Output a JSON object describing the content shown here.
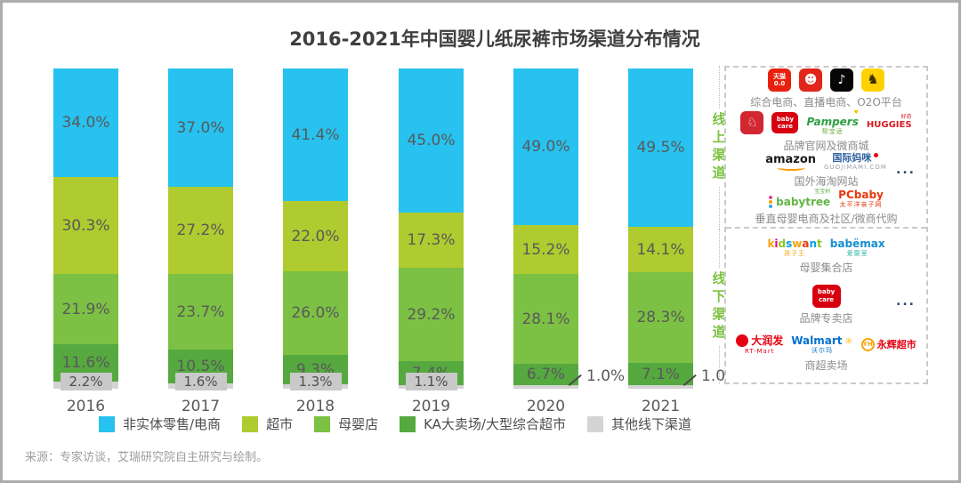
{
  "title": "2016-2021年中国婴儿纸尿裤市场渠道分布情况",
  "source": "来源：专家访谈，艾瑞研究院自主研究与绘制。",
  "chart_data": {
    "type": "bar",
    "stacked": true,
    "unit": "%",
    "title": "2016-2021年中国婴儿纸尿裤市场渠道分布情况",
    "categories": [
      "2016",
      "2017",
      "2018",
      "2019",
      "2020",
      "2021"
    ],
    "series": [
      {
        "name": "非实体零售/电商",
        "color": "#27C2EF",
        "values": [
          34.0,
          37.0,
          41.4,
          45.0,
          49.0,
          49.5
        ]
      },
      {
        "name": "超市",
        "color": "#AFCB2F",
        "values": [
          30.3,
          27.2,
          22.0,
          17.3,
          15.2,
          14.1
        ]
      },
      {
        "name": "母婴店",
        "color": "#7CC143",
        "values": [
          21.9,
          23.7,
          26.0,
          29.2,
          28.1,
          28.3
        ]
      },
      {
        "name": "KA大卖场/大型综合超市",
        "color": "#55A93F",
        "values": [
          11.6,
          10.5,
          9.3,
          7.4,
          6.7,
          7.1
        ]
      },
      {
        "name": "其他线下渠道",
        "color": "#D4D4D4",
        "values": [
          2.2,
          1.6,
          1.3,
          1.1,
          1.0,
          1.0
        ]
      }
    ],
    "ylim": [
      0,
      100
    ],
    "grid": false,
    "legend_position": "bottom"
  },
  "right_panel": {
    "online_label": "线上渠道",
    "offline_label": "线下渠道",
    "online_groups": [
      {
        "caption": "综合电商、直播电商、O2O平台",
        "logos": [
          {
            "k": "tile",
            "name": "tmall-icon",
            "bg": "#E8210F",
            "fg": "#FFFFFF",
            "lines": [
              "天猫",
              "0.0"
            ],
            "fs": 7
          },
          {
            "k": "tile",
            "name": "jd-icon",
            "bg": "#E1251B",
            "fg": "#FFFFFF",
            "lines": [
              "☻"
            ],
            "fs": 14
          },
          {
            "k": "tile",
            "name": "douyin-icon",
            "bg": "#060606",
            "fg": "#FFFFFF",
            "lines": [
              "♪"
            ],
            "fs": 14
          },
          {
            "k": "tile",
            "name": "suning-lion-icon",
            "bg": "#FFD101",
            "fg": "#3A2B00",
            "lines": [
              "♞"
            ],
            "fs": 15
          }
        ]
      },
      {
        "caption": "品牌官网及微商城",
        "logos": [
          {
            "k": "tile",
            "name": "red-brand-icon",
            "bg": "#D22630",
            "fg": "#FFFFFF",
            "lines": [
              "♘"
            ],
            "fs": 14
          },
          {
            "k": "tile",
            "name": "babycare-icon",
            "bg": "#D7000F",
            "fg": "#FFFFFF",
            "lines": [
              "baby",
              "care"
            ],
            "fs": 7,
            "w": 30,
            "h": 24
          },
          {
            "k": "wm",
            "name": "pampers-logo",
            "text": "Pampers",
            "color": "#2F9E41",
            "fs": 12,
            "italic": true,
            "sup": {
              "t": "♥",
              "c": "#F5C400"
            },
            "sub": {
              "t": "帮宝适",
              "c": "#69A73C"
            }
          },
          {
            "k": "wm",
            "name": "huggies-logo",
            "text": "HUGGIES",
            "color": "#D71A21",
            "fs": 10,
            "sup": {
              "t": "好奇",
              "c": "#D71A21"
            }
          }
        ]
      },
      {
        "caption": "国外海淘网站",
        "more": "...",
        "logos": [
          {
            "k": "amazon",
            "name": "amazon-logo",
            "text": "amazon",
            "color": "#1A1A1A",
            "smile": "#FF9900"
          },
          {
            "k": "wm",
            "name": "guojimami-logo",
            "text": "国际妈咪",
            "color": "#31649F",
            "fs": 11,
            "post": {
              "kind": "dot",
              "c": "#E60012"
            },
            "sub": {
              "t": "GUOJIMAMI.COM",
              "c": "#9AA0A6"
            }
          }
        ]
      },
      {
        "caption": "垂直母婴电商及社区/微商代购",
        "logos": [
          {
            "k": "wm",
            "name": "babytree-logo",
            "text": "babytree",
            "color": "#62B544",
            "fs": 12,
            "pre": {
              "kind": "flower"
            },
            "sup": {
              "t": "宝宝树",
              "c": "#62B544"
            }
          },
          {
            "k": "wm",
            "name": "pcbaby-logo",
            "text": "PCbaby",
            "color": "#E8380D",
            "fs": 12,
            "sub": {
              "t": "太平洋亲子网",
              "c": "#E8380D"
            }
          }
        ]
      }
    ],
    "offline_groups": [
      {
        "caption": "母婴集合店",
        "logos": [
          {
            "k": "multi",
            "name": "kidswant-logo",
            "text": "kidswant",
            "palette": [
              "#F7A30A",
              "#E4007F",
              "#8FC31F",
              "#00A0E9",
              "#F7A30A",
              "#E8380D",
              "#00A0E9",
              "#8FC31F"
            ],
            "sub": {
              "t": "孩子王",
              "c": "#F7A30A"
            }
          },
          {
            "k": "wm",
            "name": "babemax-logo",
            "text": "babёmax",
            "color": "#168FCE",
            "fs": 12,
            "sub": {
              "t": "爱婴室",
              "c": "#2CB6A8"
            }
          }
        ]
      },
      {
        "caption": "品牌专卖店",
        "more": "...",
        "logos": [
          {
            "k": "tile",
            "name": "babycare-icon",
            "bg": "#D7000F",
            "fg": "#FFFFFF",
            "lines": [
              "baby",
              "care"
            ],
            "fs": 7,
            "w": 32,
            "h": 26
          }
        ]
      },
      {
        "caption": "商超卖场",
        "logos": [
          {
            "k": "wm",
            "name": "rtmart-logo",
            "text": "大润发",
            "color": "#E60012",
            "fs": 12,
            "pre": {
              "kind": "circle",
              "c": "#E60012"
            },
            "sub": {
              "t": "RT-Mart",
              "c": "#E60012"
            }
          },
          {
            "k": "wm",
            "name": "walmart-logo",
            "text": "Walmart",
            "color": "#0071CE",
            "fs": 12,
            "post": {
              "kind": "glyph",
              "t": "✳",
              "c": "#FFC220"
            },
            "sub": {
              "t": "沃尔玛",
              "c": "#0071CE"
            }
          },
          {
            "k": "wm",
            "name": "yonghui-logo",
            "text": "永辉超市",
            "color": "#E60012",
            "fs": 11,
            "pre": {
              "kind": "yh",
              "t": "YH",
              "c": "#F7A30A"
            }
          }
        ]
      }
    ]
  }
}
